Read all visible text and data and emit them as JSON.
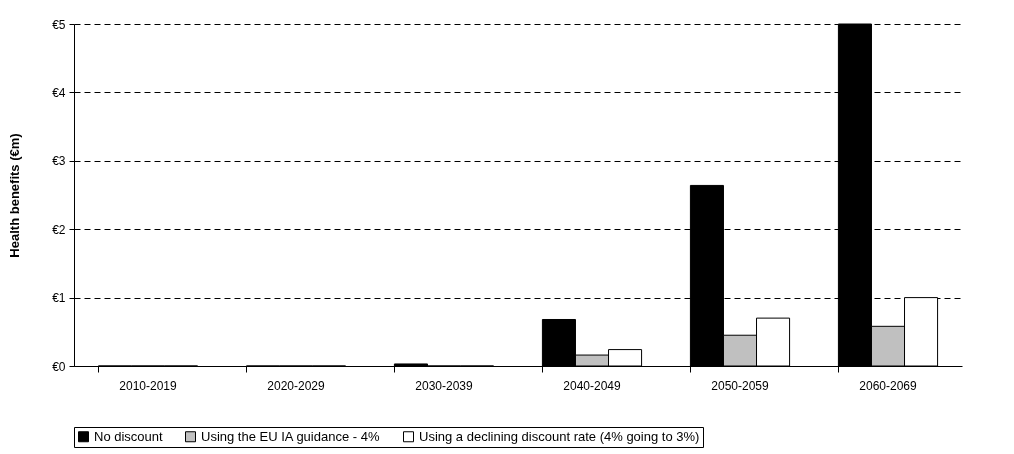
{
  "chart_data": {
    "type": "bar",
    "ylabel": "Health benefits (€m)",
    "categories": [
      "2010-2019",
      "2020-2029",
      "2030-2039",
      "2040-2049",
      "2050-2059",
      "2060-2069"
    ],
    "series": [
      {
        "name": "No discount",
        "color": "#000000",
        "values": [
          0,
          0,
          0.03,
          0.68,
          2.64,
          5.0
        ]
      },
      {
        "name": "Using the EU IA guidance - 4%",
        "color": "#c0c0c0",
        "values": [
          0,
          0,
          0,
          0.16,
          0.45,
          0.58
        ]
      },
      {
        "name": "Using a declining discount rate (4% going to 3%)",
        "color": "#ffffff",
        "values": [
          0,
          0,
          0,
          0.24,
          0.7,
          1.0
        ]
      }
    ],
    "ylim": [
      0,
      5
    ],
    "yticks": [
      {
        "value": 0,
        "label": "€0"
      },
      {
        "value": 1,
        "label": "€1"
      },
      {
        "value": 2,
        "label": "€2"
      },
      {
        "value": 3,
        "label": "€3"
      },
      {
        "value": 4,
        "label": "€4"
      },
      {
        "value": 5,
        "label": "€5"
      }
    ],
    "grid": "y",
    "line_style": "dashed",
    "legend": "bottom"
  }
}
